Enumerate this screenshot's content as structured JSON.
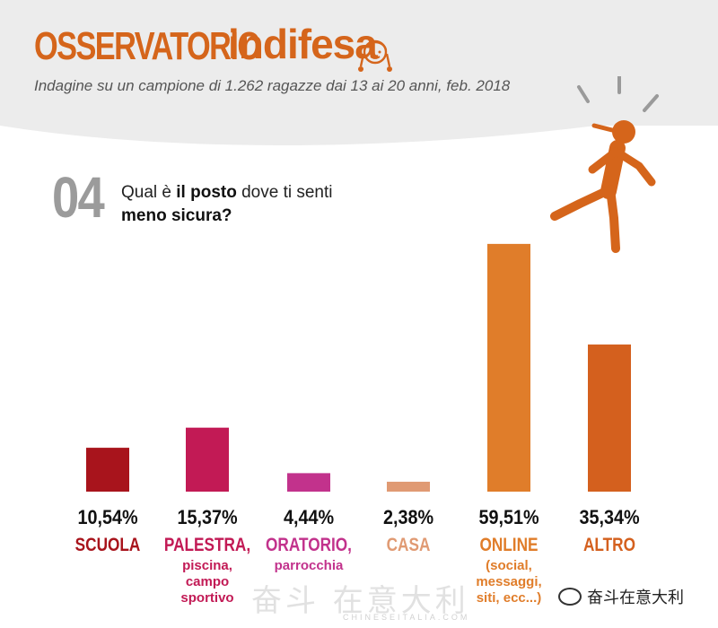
{
  "header": {
    "brand_a": "OSSERVATORIO",
    "brand_b": "indifesa",
    "subtitle": "Indagine su un campione di 1.262 ragazze dai 13 ai 20 anni, feb. 2018"
  },
  "question": {
    "number": "04",
    "line1_pre": "Qual è ",
    "line1_bold": "il posto",
    "line1_post": " dove ti senti",
    "line2_bold": "meno sicura?"
  },
  "colors": {
    "brand": "#d5651b",
    "question_number": "#9b9b9b",
    "band": "#ececec"
  },
  "chart_data": {
    "type": "bar",
    "categories": [
      "SCUOLA",
      "PALESTRA,",
      "ORATORIO,",
      "CASA",
      "ONLINE",
      "ALTRO"
    ],
    "category_notes": [
      "",
      "piscina,\ncampo\nsportivo",
      "parrocchia",
      "",
      "(social,\nmessaggi,\nsiti, ecc...)",
      ""
    ],
    "values": [
      10.54,
      15.37,
      4.44,
      2.38,
      59.51,
      35.34
    ],
    "value_labels": [
      "10,54%",
      "15,37%",
      "4,44%",
      "2,38%",
      "59,51%",
      "35,34%"
    ],
    "bar_colors": [
      "#a8141c",
      "#c21a55",
      "#c2328c",
      "#e09a73",
      "#e07d2a",
      "#d4601e"
    ],
    "label_colors": [
      "#a8141c",
      "#c21a55",
      "#c2328c",
      "#e09a73",
      "#e07d2a",
      "#d4601e"
    ],
    "ylim": [
      0,
      60
    ],
    "grid": false,
    "legend": "none"
  },
  "footer": {
    "watermark": "奋斗 在意大利",
    "watermark_sub": "CHINESEITALIA.COM",
    "credit": "奋斗在意大利"
  }
}
